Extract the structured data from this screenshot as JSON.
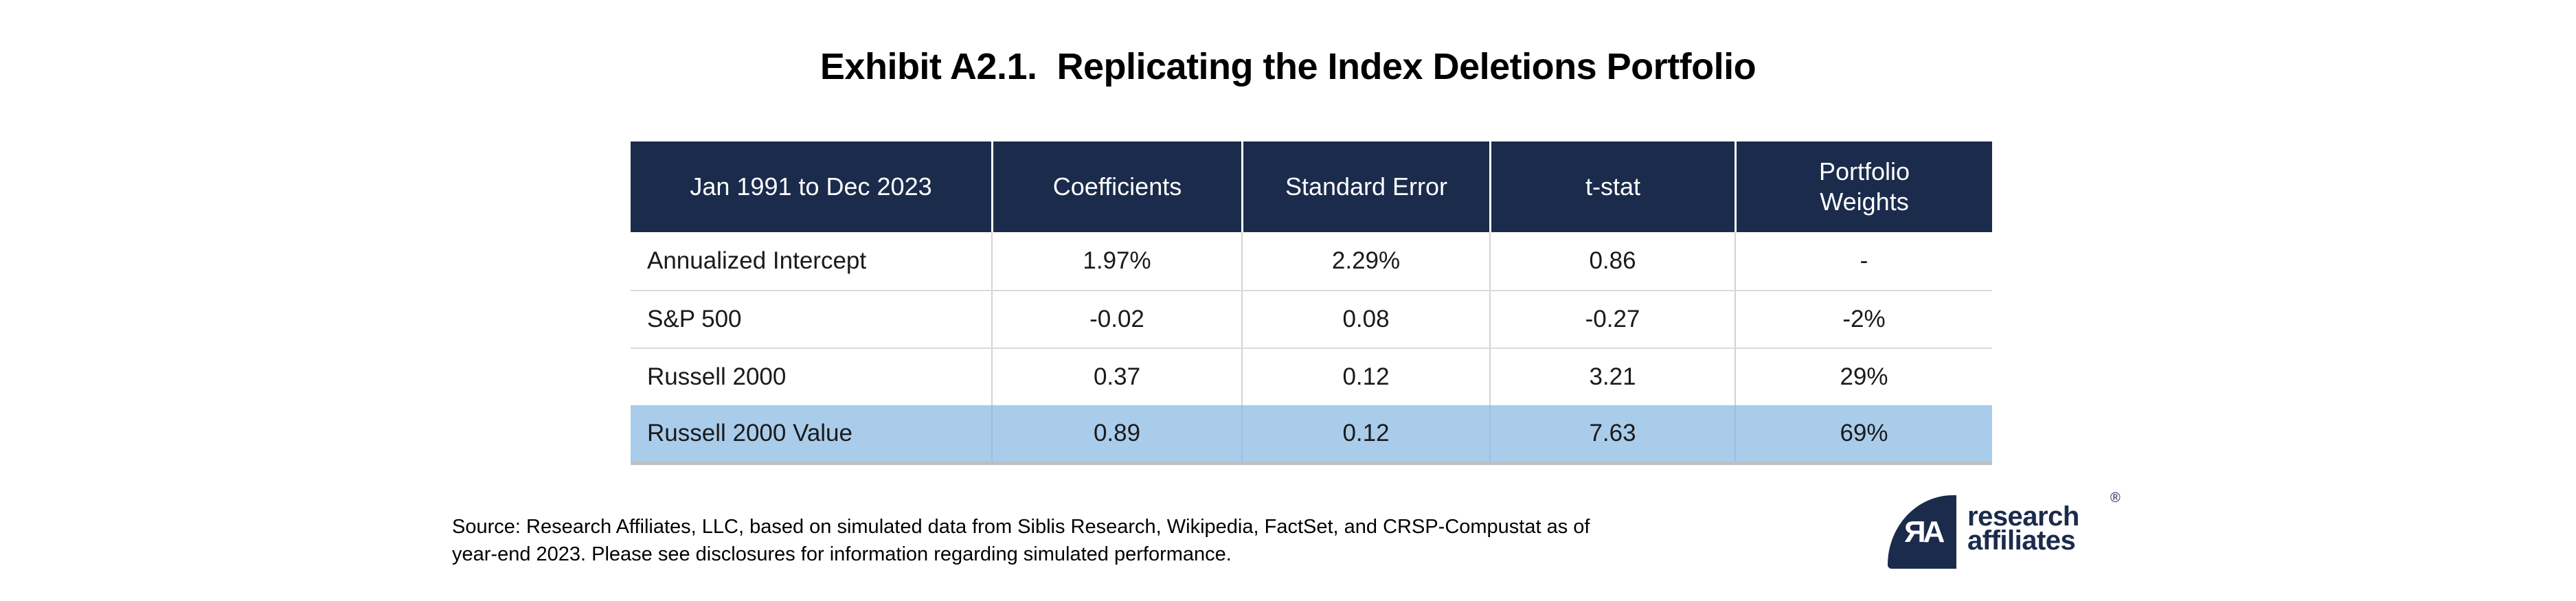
{
  "page": {
    "title": "Exhibit A2.1.  Replicating the Index Deletions Portfolio"
  },
  "table": {
    "columns": [
      "Jan 1991 to Dec 2023",
      "Coefficients",
      "Standard Error",
      "t-stat",
      "Portfolio Weights"
    ],
    "rows": [
      {
        "label": "Annualized Intercept",
        "coefficients": "1.97%",
        "standard_error": "2.29%",
        "t_stat": "0.86",
        "portfolio_weights": "-"
      },
      {
        "label": "S&P 500",
        "coefficients": "-0.02",
        "standard_error": "0.08",
        "t_stat": "-0.27",
        "portfolio_weights": "-2%"
      },
      {
        "label": "Russell 2000",
        "coefficients": "0.37",
        "standard_error": "0.12",
        "t_stat": "3.21",
        "portfolio_weights": "29%"
      },
      {
        "label": "Russell 2000 Value",
        "coefficients": "0.89",
        "standard_error": "0.12",
        "t_stat": "7.63",
        "portfolio_weights": "69%"
      }
    ],
    "highlighted_row": "Russell 2000 Value"
  },
  "source_note": {
    "line1": "Source: Research Affiliates, LLC, based on simulated data from Siblis Research, Wikipedia, FactSet, and CRSP-Compustat as of",
    "line2": "year-end 2023. Please see disclosures for information regarding simulated performance."
  },
  "logo": {
    "monogram": "ЯA",
    "name_line1": "research",
    "name_line2": "affiliates",
    "registered": "®"
  },
  "colors": {
    "header_bg": "#1B2B4C",
    "highlight_bg": "#A9CCEB",
    "logo_navy": "#1B2B4C",
    "divider_gray": "#D3D3D3",
    "row_separator_gray": "#DADADA",
    "highlight_shadow_gray": "#BDBFC2",
    "header_text": "#FFFFFF",
    "body_text": "#1A1A1A"
  },
  "chart_data": {
    "type": "table",
    "title": "Exhibit A2.1.  Replicating the Index Deletions Portfolio",
    "columns": [
      "Jan 1991 to Dec 2023",
      "Coefficients",
      "Standard Error",
      "t-stat",
      "Portfolio Weights"
    ],
    "rows": [
      [
        "Annualized Intercept",
        "1.97%",
        "2.29%",
        "0.86",
        "-"
      ],
      [
        "S&P 500",
        "-0.02",
        "0.08",
        "-0.27",
        "-2%"
      ],
      [
        "Russell 2000",
        "0.37",
        "0.12",
        "3.21",
        "29%"
      ],
      [
        "Russell 2000 Value",
        "0.89",
        "0.12",
        "7.63",
        "69%"
      ]
    ],
    "highlighted_row_index": 3,
    "footnote": "Source: Research Affiliates, LLC, based on simulated data from Siblis Research, Wikipedia, FactSet, and CRSP-Compustat as of year-end 2023. Please see disclosures for information regarding simulated performance."
  }
}
